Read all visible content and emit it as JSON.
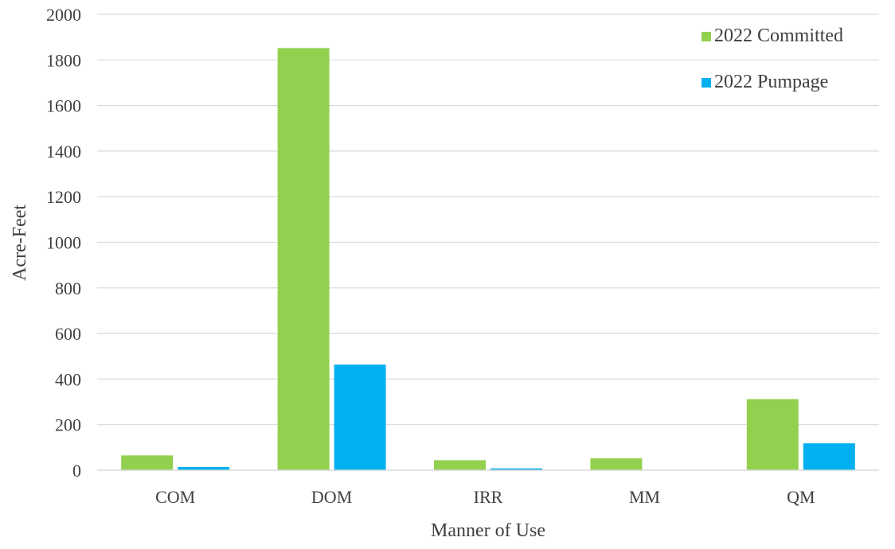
{
  "chart_data": {
    "type": "bar",
    "title": "",
    "xlabel": "Manner of Use",
    "ylabel": "Acre-Feet",
    "categories": [
      "COM",
      "DOM",
      "IRR",
      "MM",
      "QM"
    ],
    "series": [
      {
        "name": "2022 Committed",
        "color": "#92d050",
        "values": [
          65,
          1852,
          44,
          52,
          312
        ]
      },
      {
        "name": "2022 Pumpage",
        "color": "#00b0f0",
        "values": [
          14,
          463,
          8,
          0,
          118
        ]
      }
    ],
    "ylim": [
      0,
      2000
    ],
    "yticks": [
      "0",
      "200",
      "400",
      "600",
      "800",
      "1000",
      "1200",
      "1400",
      "1600",
      "1800",
      "2000"
    ],
    "grid": true,
    "legend_position": "top-right"
  }
}
